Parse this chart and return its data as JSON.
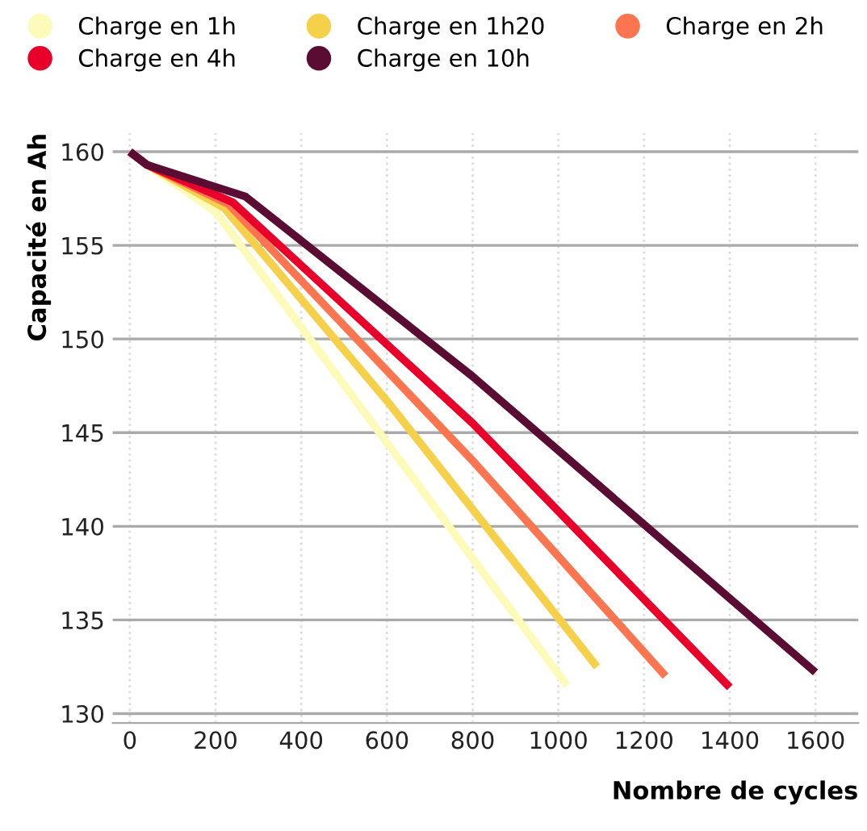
{
  "chart_data": {
    "type": "line",
    "xlabel": "Nombre de cycles",
    "ylabel": "Capacité en Ah",
    "xlim": [
      -40,
      1700
    ],
    "ylim": [
      129.5,
      161
    ],
    "xticks": [
      0,
      200,
      400,
      600,
      800,
      1000,
      1200,
      1400,
      1600
    ],
    "yticks": [
      130,
      135,
      140,
      145,
      150,
      155,
      160
    ],
    "grid": true,
    "legend": "top",
    "marker": "none",
    "line_style": "solid",
    "series": [
      {
        "name": "Charge en 1h",
        "color": "#fdfbb9",
        "x": [
          0,
          40,
          200,
          1020
        ],
        "values": [
          160,
          159.3,
          156.8,
          131.5
        ]
      },
      {
        "name": "Charge en 1h20",
        "color": "#f5d04a",
        "x": [
          0,
          40,
          220,
          600,
          1090
        ],
        "values": [
          160,
          159.3,
          157,
          146.7,
          132.5
        ]
      },
      {
        "name": "Charge en 2h",
        "color": "#fb7550",
        "x": [
          0,
          40,
          230,
          800,
          1250
        ],
        "values": [
          160,
          159.3,
          157.2,
          143.5,
          132
        ]
      },
      {
        "name": "Charge en 4h",
        "color": "#e8002a",
        "x": [
          0,
          40,
          240,
          800,
          1400
        ],
        "values": [
          160,
          159.3,
          157.3,
          145.5,
          131.4
        ]
      },
      {
        "name": "Charge en 10h",
        "color": "#5a0c33",
        "x": [
          0,
          40,
          270,
          800,
          1600
        ],
        "values": [
          160,
          159.3,
          157.6,
          148,
          132.2
        ]
      }
    ]
  }
}
